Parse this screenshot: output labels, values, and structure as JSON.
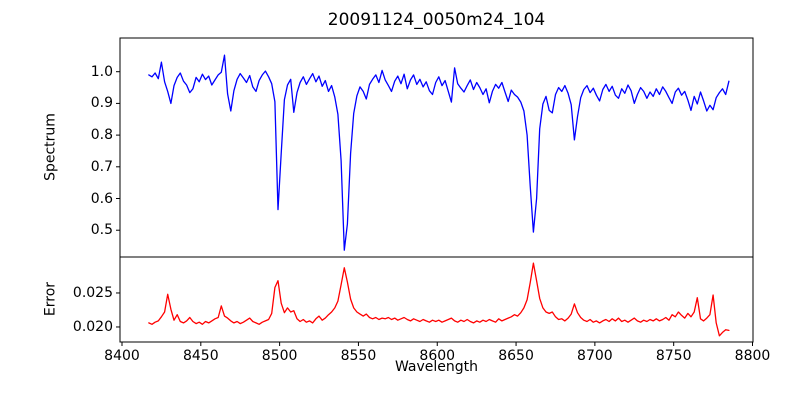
{
  "figure": {
    "background": "#ffffff",
    "text_color": "#000000",
    "spine_color": "#000000"
  },
  "chart_data": {
    "type": "line",
    "title": "20091124_0050m24_104",
    "xlabel": "Wavelength",
    "grid": false,
    "legend": "none",
    "xlim": [
      8398.73,
      8800.32
    ],
    "xticks": [
      8400,
      8450,
      8500,
      8550,
      8600,
      8650,
      8700,
      8750,
      8800
    ],
    "xtick_labels": [
      "8400",
      "8450",
      "8500",
      "8550",
      "8600",
      "8650",
      "8700",
      "8750",
      "8800"
    ],
    "x_start": 8417,
    "x_step": 2,
    "panels": [
      {
        "name": "spectrum",
        "ylabel": "Spectrum",
        "color": "#0000ff",
        "ylim": [
          0.4155,
          1.1063
        ],
        "yticks": [
          0.5,
          0.6,
          0.7,
          0.8,
          0.9,
          1.0
        ],
        "ytick_labels": [
          "0.5",
          "0.6",
          "0.7",
          "0.8",
          "0.9",
          "1.0"
        ],
        "features": "absorption lines near 8498, 8542, 8662, 8688; continuum ~0.95-1.0",
        "values": [
          0.99,
          0.984,
          0.996,
          0.978,
          1.03,
          0.968,
          0.938,
          0.9,
          0.956,
          0.982,
          0.996,
          0.97,
          0.958,
          0.934,
          0.946,
          0.982,
          0.968,
          0.992,
          0.975,
          0.986,
          0.958,
          0.974,
          0.99,
          0.998,
          1.052,
          0.93,
          0.876,
          0.94,
          0.976,
          0.994,
          0.98,
          0.966,
          0.988,
          0.952,
          0.938,
          0.972,
          0.99,
          1.002,
          0.984,
          0.962,
          0.905,
          0.565,
          0.742,
          0.912,
          0.958,
          0.976,
          0.872,
          0.934,
          0.966,
          0.984,
          0.96,
          0.978,
          0.994,
          0.968,
          0.986,
          0.954,
          0.972,
          0.938,
          0.956,
          0.92,
          0.866,
          0.72,
          0.437,
          0.52,
          0.742,
          0.868,
          0.924,
          0.952,
          0.938,
          0.914,
          0.96,
          0.976,
          0.99,
          0.966,
          1.004,
          0.974,
          0.956,
          0.938,
          0.97,
          0.986,
          0.962,
          0.992,
          0.946,
          0.974,
          0.99,
          0.96,
          0.976,
          0.952,
          0.968,
          0.94,
          0.928,
          0.966,
          0.984,
          0.956,
          0.972,
          0.938,
          0.904,
          1.012,
          0.962,
          0.948,
          0.936,
          0.956,
          0.974,
          0.944,
          0.966,
          0.95,
          0.928,
          0.946,
          0.902,
          0.938,
          0.96,
          0.948,
          0.966,
          0.936,
          0.906,
          0.942,
          0.928,
          0.92,
          0.904,
          0.876,
          0.8,
          0.64,
          0.494,
          0.6,
          0.82,
          0.898,
          0.922,
          0.878,
          0.87,
          0.928,
          0.95,
          0.938,
          0.956,
          0.932,
          0.896,
          0.785,
          0.858,
          0.918,
          0.944,
          0.956,
          0.934,
          0.948,
          0.926,
          0.908,
          0.944,
          0.96,
          0.938,
          0.954,
          0.926,
          0.916,
          0.946,
          0.932,
          0.958,
          0.94,
          0.9,
          0.928,
          0.95,
          0.938,
          0.916,
          0.936,
          0.922,
          0.946,
          0.928,
          0.952,
          0.938,
          0.918,
          0.9,
          0.936,
          0.948,
          0.926,
          0.938,
          0.91,
          0.878,
          0.922,
          0.898,
          0.936,
          0.908,
          0.876,
          0.894,
          0.88,
          0.918,
          0.934,
          0.946,
          0.928,
          0.97
        ]
      },
      {
        "name": "error",
        "ylabel": "Error",
        "color": "#ff0000",
        "ylim": [
          0.01779,
          0.03029
        ],
        "yticks": [
          0.02,
          0.025
        ],
        "ytick_labels": [
          "0.020",
          "0.025"
        ],
        "features": "baseline ~0.0205-0.0212 with peaks at 8430, 8497, 8541, 8661, 8687, 8765, 8775; dip to ~0.0187 near 8779",
        "values": [
          0.0206,
          0.0204,
          0.0207,
          0.0209,
          0.0215,
          0.0222,
          0.0248,
          0.0226,
          0.021,
          0.0218,
          0.0208,
          0.0206,
          0.0209,
          0.0214,
          0.0208,
          0.0205,
          0.0207,
          0.0204,
          0.0208,
          0.0206,
          0.0209,
          0.0212,
          0.0214,
          0.0231,
          0.0216,
          0.0213,
          0.0209,
          0.0206,
          0.0208,
          0.0205,
          0.0207,
          0.021,
          0.0213,
          0.0208,
          0.0206,
          0.0204,
          0.0207,
          0.0209,
          0.0211,
          0.022,
          0.0258,
          0.0268,
          0.0235,
          0.0221,
          0.0228,
          0.0222,
          0.0224,
          0.0212,
          0.0208,
          0.0211,
          0.0207,
          0.0209,
          0.0206,
          0.0212,
          0.0216,
          0.021,
          0.0213,
          0.0218,
          0.0222,
          0.0228,
          0.0238,
          0.0262,
          0.0287,
          0.0266,
          0.0241,
          0.0228,
          0.0222,
          0.0219,
          0.0216,
          0.0219,
          0.0214,
          0.0212,
          0.0214,
          0.0211,
          0.0213,
          0.0212,
          0.0214,
          0.0211,
          0.0213,
          0.021,
          0.0212,
          0.0214,
          0.0211,
          0.0209,
          0.0212,
          0.021,
          0.0208,
          0.0211,
          0.0209,
          0.0207,
          0.021,
          0.0208,
          0.021,
          0.0207,
          0.0209,
          0.0211,
          0.0213,
          0.0209,
          0.0207,
          0.021,
          0.0208,
          0.0211,
          0.0208,
          0.0206,
          0.0209,
          0.0207,
          0.021,
          0.0208,
          0.0211,
          0.0209,
          0.0207,
          0.0212,
          0.0209,
          0.0211,
          0.0213,
          0.0215,
          0.0218,
          0.0216,
          0.0221,
          0.0228,
          0.024,
          0.0265,
          0.0294,
          0.0268,
          0.0242,
          0.0228,
          0.0222,
          0.022,
          0.0222,
          0.0215,
          0.0211,
          0.0212,
          0.0209,
          0.0213,
          0.0219,
          0.0234,
          0.0221,
          0.0214,
          0.021,
          0.0208,
          0.0211,
          0.0207,
          0.0209,
          0.0206,
          0.0209,
          0.0211,
          0.0208,
          0.0212,
          0.0209,
          0.0213,
          0.0208,
          0.021,
          0.0207,
          0.021,
          0.0213,
          0.0209,
          0.0207,
          0.021,
          0.0208,
          0.0211,
          0.0209,
          0.0212,
          0.0209,
          0.0211,
          0.0214,
          0.021,
          0.0218,
          0.0215,
          0.0222,
          0.0217,
          0.0213,
          0.022,
          0.0215,
          0.0222,
          0.0243,
          0.0212,
          0.0209,
          0.0213,
          0.0218,
          0.0247,
          0.0206,
          0.0187,
          0.0192,
          0.0196,
          0.0195
        ]
      }
    ]
  }
}
